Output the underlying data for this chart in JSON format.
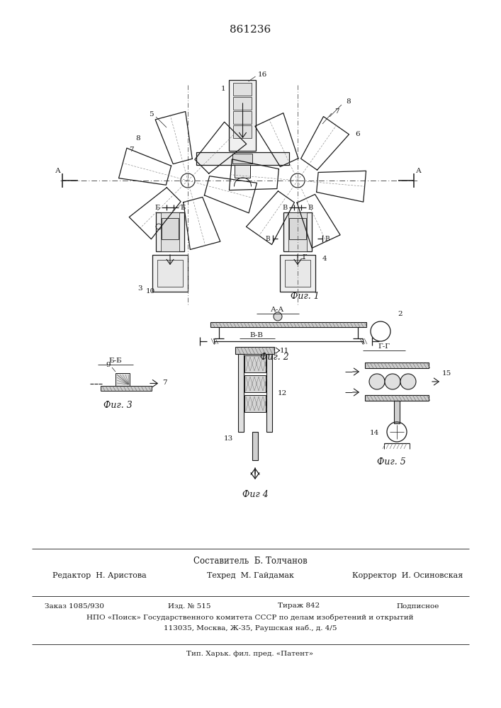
{
  "title": "861236",
  "fig1_caption": "Фиг. 1",
  "fig2_caption": "Фиг. 2",
  "fig3_caption": "Фиг. 3",
  "fig4_caption": "Фиг 4",
  "fig5_caption": "Фиг. 5",
  "aa_label": "А-А",
  "bb_label": "Б-Б",
  "vv_label": "B-B",
  "gg_label": "Г-Г",
  "footer_composer": "Составитель  Б. Толчанов",
  "footer_editor": "Редактор  Н. Аристова",
  "footer_techred": "Техред  М. Гайдамак",
  "footer_corrector": "Корректор  И. Осиновская",
  "footer_order": "Заказ 1085/930",
  "footer_izd": "Изд. № 515",
  "footer_tirazh": "Тираж 842",
  "footer_podpisnoe": "Подписное",
  "footer_npo": "НПО «Поиск» Государственного комитета СССР по делам изобретений и открытий",
  "footer_address": "113035, Москва, Ж-35, Раушская наб., д. 4/5",
  "footer_tip": "Тип. Харьк. фил. пред. «Патент»"
}
